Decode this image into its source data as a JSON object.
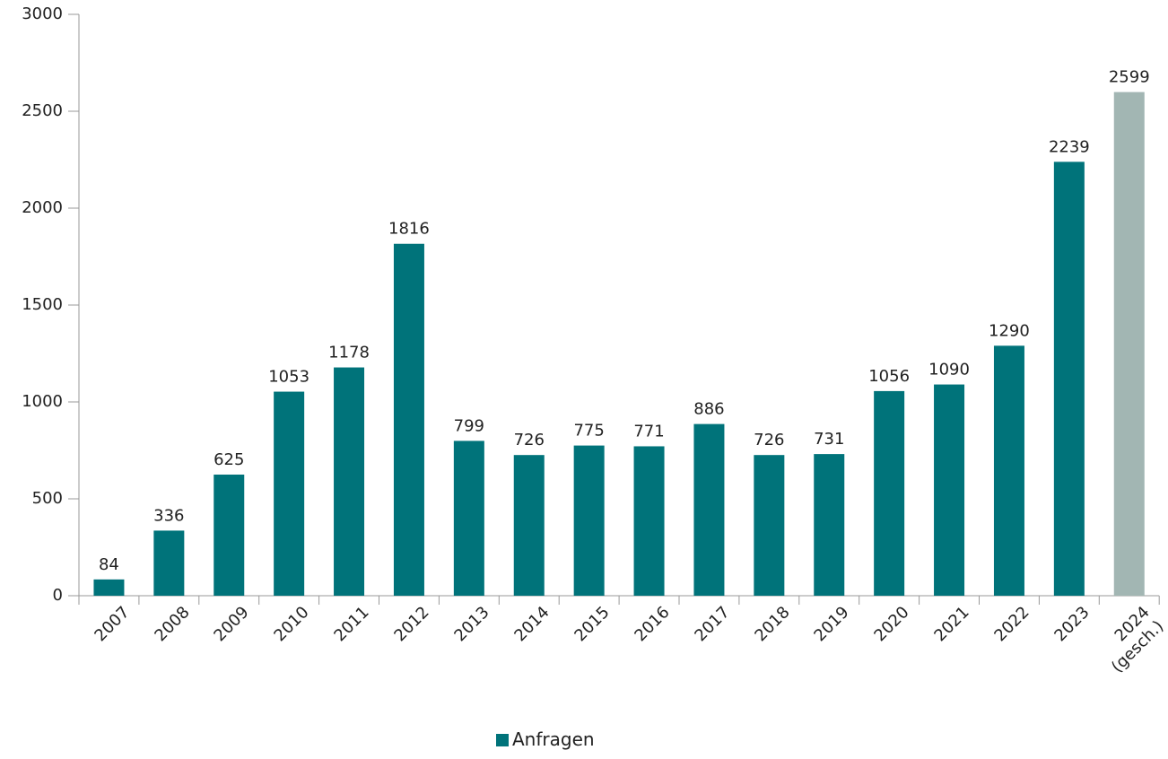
{
  "chart_data": {
    "type": "bar",
    "categories": [
      "2007",
      "2008",
      "2009",
      "2010",
      "2011",
      "2012",
      "2013",
      "2014",
      "2015",
      "2016",
      "2017",
      "2018",
      "2019",
      "2020",
      "2021",
      "2022",
      "2023",
      "2024\n(gesch.)"
    ],
    "series": [
      {
        "name": "Anfragen",
        "color": "#00737a",
        "values": [
          84,
          336,
          625,
          1053,
          1178,
          1816,
          799,
          726,
          775,
          771,
          886,
          726,
          731,
          1056,
          1090,
          1290,
          2239,
          2599
        ],
        "colors": [
          "#00737a",
          "#00737a",
          "#00737a",
          "#00737a",
          "#00737a",
          "#00737a",
          "#00737a",
          "#00737a",
          "#00737a",
          "#00737a",
          "#00737a",
          "#00737a",
          "#00737a",
          "#00737a",
          "#00737a",
          "#00737a",
          "#00737a",
          "#a2b6b3"
        ]
      }
    ],
    "ylim": [
      0,
      3000
    ],
    "yticks": [
      0,
      500,
      1000,
      1500,
      2000,
      2500,
      3000
    ],
    "grid": false,
    "legend": "bottom"
  }
}
